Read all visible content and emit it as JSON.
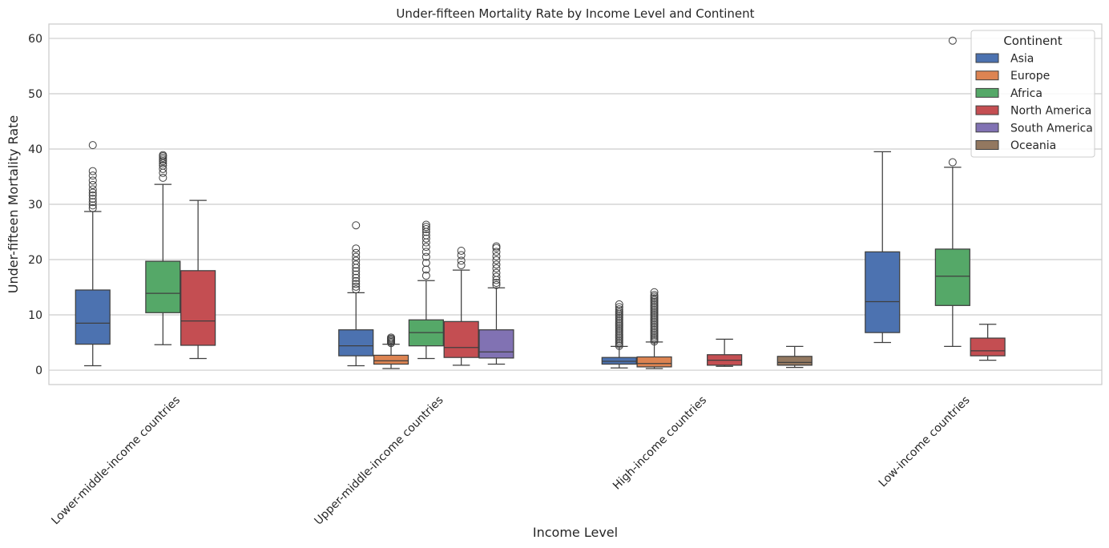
{
  "chart_data": {
    "type": "boxplot",
    "title": "Under-fifteen Mortality Rate by Income Level and Continent",
    "xlabel": "Income Level",
    "ylabel": "Under-fifteen Mortality Rate",
    "ylim": [
      -2.6,
      62.6
    ],
    "yticks": [
      0,
      10,
      20,
      30,
      40,
      50,
      60
    ],
    "grid": "horizontal",
    "legend": {
      "title": "Continent",
      "placement": "top-right"
    },
    "categories": [
      "Lower-middle-income countries",
      "Upper-middle-income countries",
      "High-income countries",
      "Low-income countries"
    ],
    "series": [
      {
        "name": "Asia",
        "color": "#4c72b0",
        "boxes": [
          {
            "category": 0,
            "whislo": 0.8,
            "q1": 4.7,
            "med": 8.5,
            "q3": 14.5,
            "whishi": 28.7,
            "fliers": [
              29.3,
              29.8,
              30.4,
              31.0,
              31.6,
              32.1,
              32.7,
              33.5,
              34.3,
              35.2,
              36.0,
              40.7
            ]
          },
          {
            "category": 1,
            "whislo": 0.8,
            "q1": 2.6,
            "med": 4.4,
            "q3": 7.3,
            "whishi": 14.0,
            "fliers": [
              14.6,
              15.1,
              15.6,
              16.1,
              16.7,
              17.3,
              17.9,
              18.5,
              19.1,
              19.8,
              20.5,
              21.2,
              22.0,
              26.2
            ]
          },
          {
            "category": 2,
            "whislo": 0.4,
            "q1": 1.1,
            "med": 1.6,
            "q3": 2.3,
            "whishi": 4.3,
            "fliers": [
              4.4,
              4.7,
              5.0,
              5.3,
              5.6,
              5.9,
              6.2,
              6.5,
              6.8,
              7.1,
              7.4,
              7.7,
              8.0,
              8.3,
              8.6,
              8.9,
              9.2,
              9.5,
              9.8,
              10.1,
              10.4,
              10.7,
              11.0,
              11.4,
              11.9
            ]
          },
          {
            "category": 3,
            "whislo": 5.0,
            "q1": 6.8,
            "med": 12.4,
            "q3": 21.4,
            "whishi": 39.5,
            "fliers": []
          }
        ]
      },
      {
        "name": "Europe",
        "color": "#dd8452",
        "boxes": [
          {
            "category": 1,
            "whislo": 0.3,
            "q1": 1.1,
            "med": 1.7,
            "q3": 2.7,
            "whishi": 4.7,
            "fliers": [
              4.9,
              5.1,
              5.3,
              5.5,
              5.7,
              5.9
            ]
          },
          {
            "category": 2,
            "whislo": 0.3,
            "q1": 0.6,
            "med": 1.2,
            "q3": 2.4,
            "whishi": 5.1,
            "fliers": [
              5.2,
              5.5,
              5.8,
              6.1,
              6.4,
              6.7,
              7.0,
              7.3,
              7.6,
              7.9,
              8.2,
              8.5,
              8.8,
              9.1,
              9.4,
              9.7,
              10.0,
              10.3,
              10.6,
              10.9,
              11.2,
              11.5,
              11.8,
              12.1,
              12.4,
              12.7,
              13.0,
              13.3,
              13.6,
              14.1
            ]
          }
        ]
      },
      {
        "name": "Africa",
        "color": "#55a868",
        "boxes": [
          {
            "category": 0,
            "whislo": 4.6,
            "q1": 10.4,
            "med": 13.9,
            "q3": 19.7,
            "whishi": 33.6,
            "fliers": [
              34.8,
              35.7,
              36.4,
              37.0,
              37.4,
              37.8,
              38.1,
              38.4,
              38.7,
              38.9
            ]
          },
          {
            "category": 1,
            "whislo": 2.1,
            "q1": 4.4,
            "med": 6.8,
            "q3": 9.1,
            "whishi": 16.2,
            "fliers": [
              17.1,
              18.2,
              19.4,
              20.5,
              21.4,
              22.3,
              23.1,
              23.8,
              24.4,
              25.0,
              25.5,
              25.9,
              26.3
            ]
          },
          {
            "category": 3,
            "whislo": 4.3,
            "q1": 11.7,
            "med": 17.0,
            "q3": 21.9,
            "whishi": 36.7,
            "fliers": [
              37.6,
              59.6
            ]
          }
        ]
      },
      {
        "name": "North America",
        "color": "#c44e52",
        "boxes": [
          {
            "category": 0,
            "whislo": 2.1,
            "q1": 4.5,
            "med": 8.9,
            "q3": 18.0,
            "whishi": 30.7,
            "fliers": []
          },
          {
            "category": 1,
            "whislo": 0.9,
            "q1": 2.3,
            "med": 4.1,
            "q3": 8.8,
            "whishi": 18.1,
            "fliers": [
              19.0,
              19.8,
              20.8,
              21.6
            ]
          },
          {
            "category": 2,
            "whislo": 0.7,
            "q1": 0.9,
            "med": 1.8,
            "q3": 2.8,
            "whishi": 5.6,
            "fliers": []
          },
          {
            "category": 3,
            "whislo": 1.8,
            "q1": 2.6,
            "med": 3.5,
            "q3": 5.8,
            "whishi": 8.3,
            "fliers": []
          }
        ]
      },
      {
        "name": "South America",
        "color": "#8172b3",
        "boxes": [
          {
            "category": 1,
            "whislo": 1.1,
            "q1": 2.2,
            "med": 3.3,
            "q3": 7.3,
            "whishi": 14.9,
            "fliers": [
              15.4,
              15.8,
              16.3,
              16.9,
              17.6,
              18.4,
              19.1,
              19.9,
              20.6,
              21.4,
              22.1,
              22.4
            ]
          }
        ]
      },
      {
        "name": "Oceania",
        "color": "#937860",
        "boxes": [
          {
            "category": 2,
            "whislo": 0.5,
            "q1": 0.9,
            "med": 1.4,
            "q3": 2.5,
            "whishi": 4.3,
            "fliers": []
          }
        ]
      }
    ]
  }
}
